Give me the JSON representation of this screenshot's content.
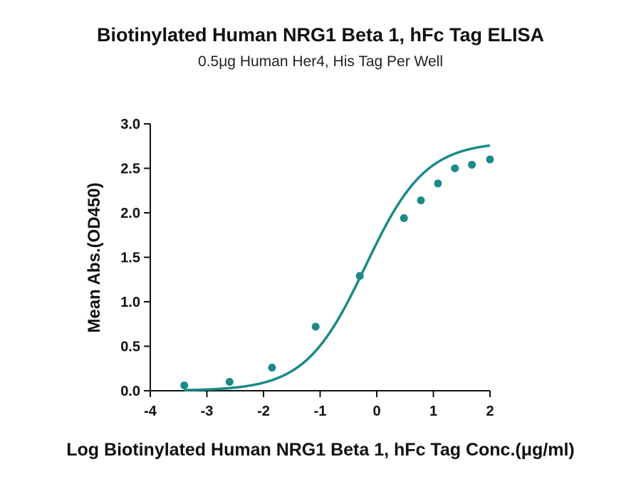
{
  "chart_data": {
    "type": "scatter",
    "title": "Biotinylated Human NRG1 Beta 1, hFc Tag ELISA",
    "subtitle": "0.5μg Human Her4, His Tag Per Well",
    "xlabel": "Log Biotinylated Human NRG1 Beta 1, hFc Tag Conc.(μg/ml)",
    "ylabel": "Mean Abs.(OD450)",
    "xlim": [
      -4,
      2
    ],
    "ylim": [
      0,
      3.0
    ],
    "x_ticks": [
      "-4",
      "-3",
      "-2",
      "-1",
      "0",
      "1",
      "2"
    ],
    "y_ticks": [
      "0.0",
      "0.5",
      "1.0",
      "1.5",
      "2.0",
      "2.5",
      "3.0"
    ],
    "grid": false,
    "legend": "none",
    "color": "#1a8a8a",
    "series": [
      {
        "x": [
          -3.4,
          -2.6,
          -1.85,
          -1.08,
          -0.3,
          0.48,
          0.78,
          1.08,
          1.38,
          1.68,
          2.0
        ],
        "y": [
          0.06,
          0.1,
          0.26,
          0.72,
          1.29,
          1.94,
          2.14,
          2.33,
          2.5,
          2.54,
          2.6
        ]
      }
    ],
    "fit": {
      "type": "4PL",
      "bottom": 0.0,
      "top": 2.8,
      "log_ec50": -0.2,
      "hill": 0.82
    }
  }
}
